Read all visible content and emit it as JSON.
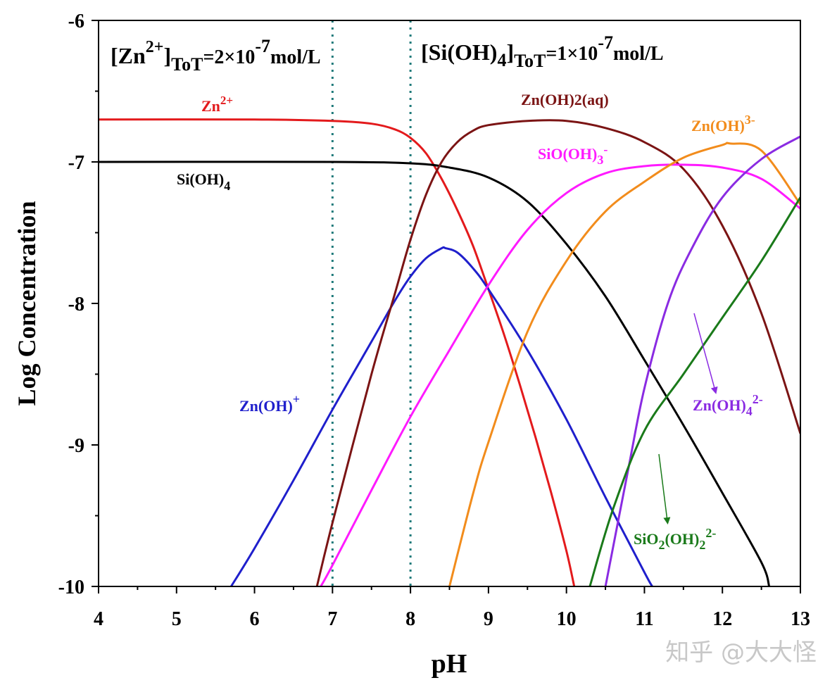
{
  "chart_data": {
    "type": "line",
    "title": "",
    "xlabel": "pH",
    "ylabel": "Log Concentration",
    "xlim": [
      4,
      13
    ],
    "ylim": [
      -10,
      -6
    ],
    "x_ticks": [
      "4",
      "5",
      "6",
      "7",
      "8",
      "9",
      "10",
      "11",
      "12",
      "13"
    ],
    "y_ticks": [
      "-6",
      "-7",
      "-8",
      "-9",
      "-10"
    ],
    "grid": false,
    "reference_lines_x": [
      7,
      8
    ],
    "annotations": {
      "zn_total": {
        "base": "[Zn",
        "sup": "2+",
        "bracket": "]",
        "sub": "ToT",
        "value": "=2×10",
        "exp": "-7",
        "unit": "mol/L"
      },
      "si_total": {
        "base": "[Si(OH)",
        "sub4": "4",
        "bracket": "]",
        "sub": "ToT",
        "value": "=1×10",
        "exp": "-7",
        "unit": "mol/L"
      }
    },
    "watermark": "知乎 @大大怪",
    "series": [
      {
        "name": "Zn2+",
        "color": "#e31a1c",
        "x": [
          4,
          6,
          7,
          7.5,
          7.8,
          8.0,
          8.2,
          8.4,
          8.6,
          8.8,
          9.0,
          9.2,
          9.4,
          9.6,
          9.8,
          10.0,
          10.1
        ],
        "y": [
          -6.7,
          -6.7,
          -6.71,
          -6.73,
          -6.77,
          -6.83,
          -6.94,
          -7.12,
          -7.34,
          -7.59,
          -7.9,
          -8.22,
          -8.57,
          -8.94,
          -9.33,
          -9.75,
          -10.0
        ]
      },
      {
        "name": "Si(OH)4",
        "color": "#000000",
        "x": [
          4,
          7,
          8,
          8.5,
          9.0,
          9.5,
          10.0,
          10.5,
          11.0,
          11.5,
          12.0,
          12.5,
          12.6
        ],
        "y": [
          -7.0,
          -7.0,
          -7.01,
          -7.04,
          -7.11,
          -7.28,
          -7.58,
          -7.95,
          -8.4,
          -8.86,
          -9.34,
          -9.83,
          -10.0
        ]
      },
      {
        "name": "Zn(OH)+",
        "color": "#1f1fcc",
        "x": [
          5.7,
          6.0,
          6.5,
          7.0,
          7.5,
          7.8,
          8.0,
          8.2,
          8.4,
          8.45,
          8.6,
          8.8,
          9.0,
          9.5,
          10.0,
          10.5,
          11.0,
          11.1
        ],
        "y": [
          -10.0,
          -9.73,
          -9.25,
          -8.75,
          -8.27,
          -7.98,
          -7.81,
          -7.68,
          -7.61,
          -7.61,
          -7.64,
          -7.75,
          -7.9,
          -8.33,
          -8.82,
          -9.37,
          -9.9,
          -10.0
        ]
      },
      {
        "name": "Zn(OH)2(aq)",
        "color": "#7b1414",
        "x": [
          6.8,
          7.0,
          7.5,
          7.8,
          8.0,
          8.2,
          8.4,
          8.6,
          8.8,
          9.0,
          9.5,
          10.0,
          10.5,
          11.0,
          11.5,
          12.0,
          12.5,
          13.0
        ],
        "y": [
          -10.0,
          -9.55,
          -8.5,
          -7.93,
          -7.55,
          -7.23,
          -7.0,
          -6.86,
          -6.78,
          -6.74,
          -6.71,
          -6.71,
          -6.76,
          -6.86,
          -7.05,
          -7.45,
          -8.07,
          -8.92
        ]
      },
      {
        "name": "SiO(OH)3-",
        "color": "#ff1aff",
        "x": [
          6.85,
          7.0,
          7.5,
          8.0,
          8.5,
          9.0,
          9.5,
          10.0,
          10.5,
          11.0,
          11.5,
          12.0,
          12.5,
          13.0
        ],
        "y": [
          -10.0,
          -9.85,
          -9.32,
          -8.8,
          -8.33,
          -7.87,
          -7.48,
          -7.22,
          -7.08,
          -7.03,
          -7.02,
          -7.04,
          -7.12,
          -7.33
        ]
      },
      {
        "name": "Zn(OH)3-",
        "color": "#f28c1c",
        "x": [
          8.5,
          8.8,
          9.0,
          9.5,
          10.0,
          10.5,
          11.0,
          11.5,
          12.0,
          12.1,
          12.5,
          13.0
        ],
        "y": [
          -10.0,
          -9.35,
          -8.98,
          -8.2,
          -7.7,
          -7.35,
          -7.14,
          -6.97,
          -6.88,
          -6.87,
          -6.92,
          -7.3
        ]
      },
      {
        "name": "Zn(OH)42-",
        "color": "#8a2be2",
        "x": [
          10.5,
          10.8,
          11.0,
          11.3,
          11.6,
          12.0,
          12.5,
          13.0
        ],
        "y": [
          -10.0,
          -9.15,
          -8.6,
          -8.0,
          -7.62,
          -7.25,
          -6.98,
          -6.82
        ]
      },
      {
        "name": "SiO2(OH)22-",
        "color": "#1a7a1a",
        "x": [
          10.3,
          10.6,
          11.0,
          11.5,
          12.0,
          12.5,
          13.0
        ],
        "y": [
          -10.0,
          -9.45,
          -8.9,
          -8.5,
          -8.1,
          -7.7,
          -7.25
        ]
      }
    ],
    "series_labels": [
      {
        "id": "zn2",
        "base": "Zn",
        "sup": "2+",
        "color": "#e31a1c"
      },
      {
        "id": "sioh4",
        "base": "Si(OH)",
        "sub": "4",
        "color": "#000000"
      },
      {
        "id": "znoh",
        "base": "Zn(OH)",
        "sup": "+",
        "color": "#1f1fcc"
      },
      {
        "id": "znoh2",
        "base": "Zn(OH)",
        "sub": "2",
        "tail": "(aq)",
        "color": "#7b1414"
      },
      {
        "id": "sioh3",
        "base": "SiO(OH)",
        "sub": "3",
        "sup": "-",
        "color": "#ff1aff"
      },
      {
        "id": "znoh3",
        "base": "Zn(OH)",
        "sup": "3-",
        "color": "#f28c1c"
      },
      {
        "id": "znoh4",
        "base": "Zn(OH)",
        "sub": "4",
        "sup": "2-",
        "color": "#8a2be2"
      },
      {
        "id": "sio2",
        "base": "SiO",
        "sub": "2",
        "mid": "(OH)",
        "sub2": "2",
        "sup": "2-",
        "color": "#1a7a1a"
      }
    ]
  }
}
